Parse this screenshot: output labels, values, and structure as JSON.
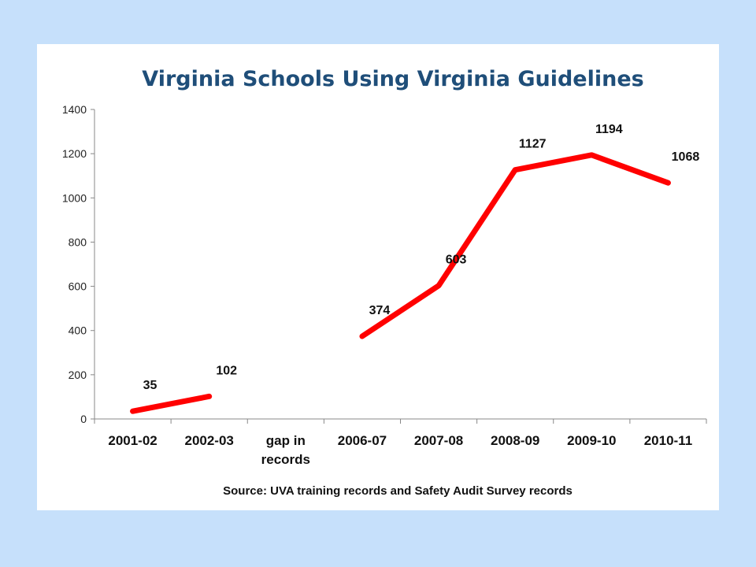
{
  "chart_data": {
    "type": "line",
    "title": "Virginia Schools Using Virginia Guidelines",
    "source_note": "Source: UVA training records and Safety Audit Survey records",
    "categories": [
      "2001-02",
      "2002-03",
      "gap in records",
      "2006-07",
      "2007-08",
      "2008-09",
      "2009-10",
      "2010-11"
    ],
    "series": [
      {
        "values": [
          35,
          102,
          null,
          374,
          603,
          1127,
          1194,
          1068
        ],
        "color": "#ff0000"
      }
    ],
    "data_labels": [
      "35",
      "102",
      "",
      "374",
      "603",
      "1127",
      "1194",
      "1068"
    ],
    "ylim": [
      0,
      1400
    ],
    "yticks": [
      0,
      200,
      400,
      600,
      800,
      1000,
      1200,
      1400
    ],
    "grid": false,
    "legend": "none"
  },
  "colors": {
    "background": "#c6e0fb",
    "panel": "#ffffff",
    "title": "#1f4e79",
    "line": "#ff0000",
    "axis": "#888888"
  }
}
